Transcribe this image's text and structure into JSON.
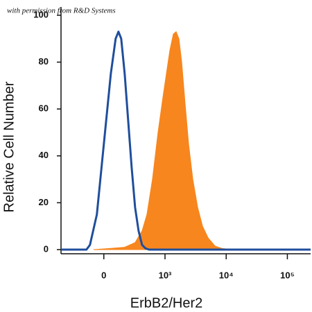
{
  "chart_data": {
    "type": "area",
    "annotation": "with permission from R&D Systems",
    "xlabel": "ErbB2/Her2",
    "ylabel": "Relative Cell Number",
    "xscale": "biexponential",
    "xlim": [
      -700,
      240000
    ],
    "xticks": [
      0,
      {
        "value": 1000,
        "label": "10³"
      },
      {
        "value": 10000,
        "label": "10⁴"
      },
      {
        "value": 100000,
        "label": "10⁵"
      }
    ],
    "ylim": [
      0,
      100
    ],
    "yticks": [
      0,
      20,
      40,
      60,
      80,
      100
    ],
    "series": [
      {
        "color": "#f7861e",
        "fill": true,
        "x": [
          -170,
          114,
          341,
          511,
          625,
          705,
          795,
          886,
          966,
          1053,
          1200,
          1369,
          1520,
          1688,
          1874,
          2136,
          2433,
          2848,
          3420,
          4106,
          5062,
          6576,
          8542,
          12630
        ],
        "values": [
          0,
          0.5,
          1,
          3,
          8,
          15,
          30,
          50,
          65,
          75,
          85,
          92,
          93,
          90,
          80,
          62,
          45,
          30,
          18,
          10,
          5,
          1.5,
          0.5,
          0
        ]
      },
      {
        "color": "#1f4e9c",
        "fill": false,
        "x": [
          -700,
          -284,
          -227,
          -114,
          0,
          114,
          193,
          239,
          284,
          341,
          398,
          455,
          511,
          568,
          625,
          682,
          739,
          240000
        ],
        "values": [
          0,
          0,
          2,
          15,
          45,
          75,
          90,
          93,
          90,
          75,
          55,
          35,
          18,
          8,
          2,
          0.5,
          0,
          0
        ]
      }
    ]
  }
}
